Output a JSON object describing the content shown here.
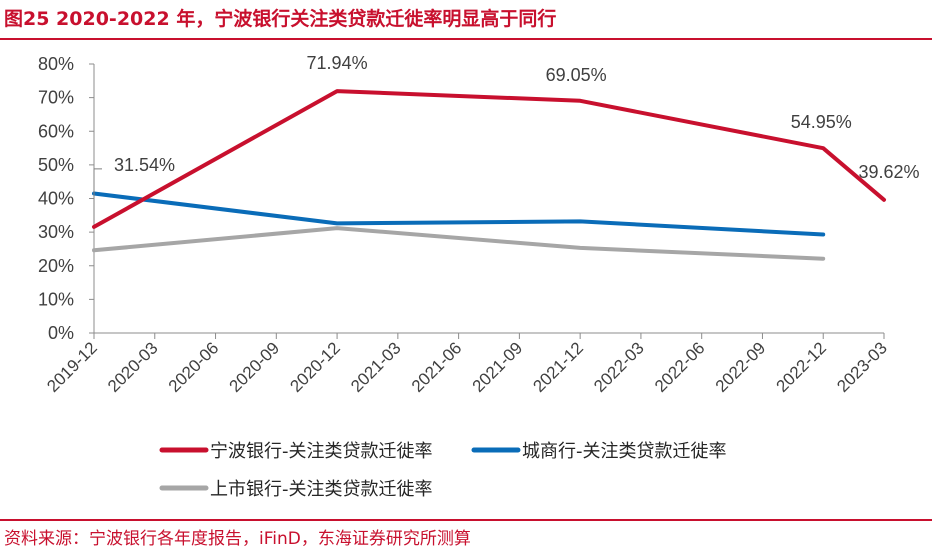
{
  "header": {
    "title": "图25  2020-2022 年，宁波银行关注类贷款迁徙率明显高于同行"
  },
  "footer": {
    "source": "资料来源：宁波银行各年度报告，iFinD，东海证券研究所测算"
  },
  "colors": {
    "accent": "#c8102e",
    "series_red": "#c8102e",
    "series_blue": "#0a6cb8",
    "series_gray": "#a6a6a6",
    "axis": "#8c8c8c",
    "text": "#404040"
  },
  "chart_data": {
    "type": "line",
    "title": "",
    "xlabel": "",
    "ylabel": "",
    "ylim": [
      0,
      80
    ],
    "y_ticks": [
      0,
      10,
      20,
      30,
      40,
      50,
      60,
      70,
      80
    ],
    "y_tick_labels": [
      "0%",
      "10%",
      "20%",
      "30%",
      "40%",
      "50%",
      "60%",
      "70%",
      "80%"
    ],
    "categories": [
      "2019-12",
      "2020-03",
      "2020-06",
      "2020-09",
      "2020-12",
      "2021-03",
      "2021-06",
      "2021-09",
      "2021-12",
      "2022-03",
      "2022-06",
      "2022-09",
      "2022-12",
      "2023-03"
    ],
    "grid": false,
    "legend_position": "bottom",
    "series": [
      {
        "name": "宁波银行-关注类贷款迁徙率",
        "color": "#c8102e",
        "points": [
          [
            "2019-12",
            31.54
          ],
          [
            "2020-12",
            71.94
          ],
          [
            "2021-12",
            69.05
          ],
          [
            "2022-12",
            54.95
          ],
          [
            "2023-03",
            39.62
          ]
        ]
      },
      {
        "name": "城商行-关注类贷款迁徙率",
        "color": "#0a6cb8",
        "points": [
          [
            "2019-12",
            41.5
          ],
          [
            "2020-12",
            32.6
          ],
          [
            "2021-12",
            33.2
          ],
          [
            "2022-12",
            29.3
          ]
        ]
      },
      {
        "name": "上市银行-关注类贷款迁徙率",
        "color": "#a6a6a6",
        "points": [
          [
            "2019-12",
            24.6
          ],
          [
            "2020-12",
            31.2
          ],
          [
            "2021-12",
            25.3
          ],
          [
            "2022-12",
            22.1
          ]
        ]
      }
    ],
    "annotations": [
      {
        "label": "31.54%",
        "x": "2019-12",
        "y": 31.54,
        "callout": true
      },
      {
        "label": "71.94%",
        "x": "2020-12",
        "y": 71.94
      },
      {
        "label": "69.05%",
        "x": "2021-12",
        "y": 69.05
      },
      {
        "label": "54.95%",
        "x": "2022-12",
        "y": 54.95
      },
      {
        "label": "39.62%",
        "x": "2023-03",
        "y": 39.62
      }
    ]
  }
}
